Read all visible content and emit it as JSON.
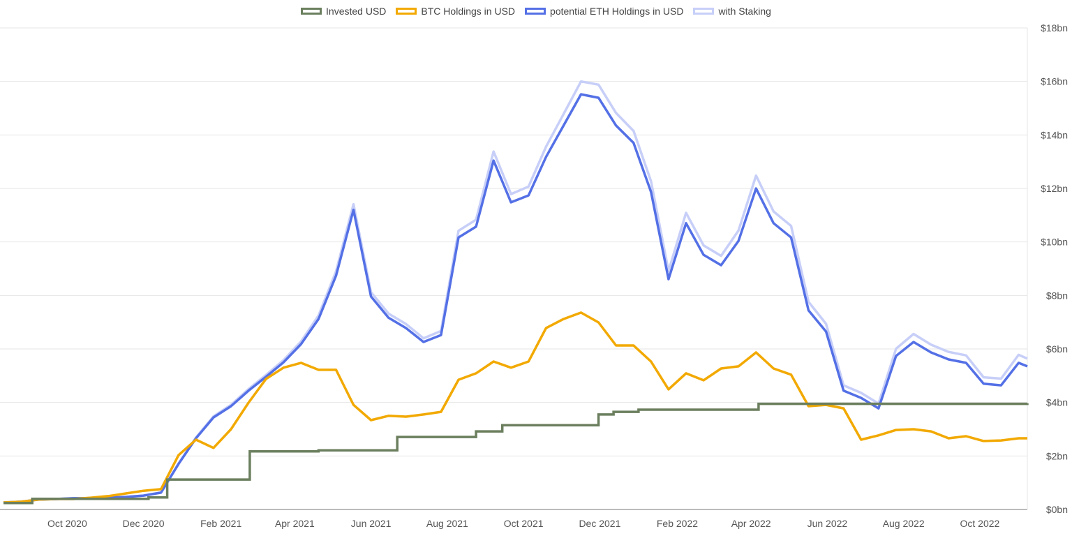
{
  "chart_data": {
    "type": "line",
    "title": "",
    "xlabel": "",
    "ylabel": "",
    "xlim": [
      "2020-08-11",
      "2022-11-08"
    ],
    "ylim": [
      0,
      18
    ],
    "y_unit": "bn USD",
    "y_axis_side": "right",
    "grid": true,
    "legend_position": "top",
    "x_tick_labels": [
      {
        "date": "2020-10-01",
        "label": "Oct 2020"
      },
      {
        "date": "2020-12-01",
        "label": "Dec 2020"
      },
      {
        "date": "2021-02-01",
        "label": "Feb 2021"
      },
      {
        "date": "2021-04-01",
        "label": "Apr 2021"
      },
      {
        "date": "2021-06-01",
        "label": "Jun 2021"
      },
      {
        "date": "2021-08-01",
        "label": "Aug 2021"
      },
      {
        "date": "2021-10-01",
        "label": "Oct 2021"
      },
      {
        "date": "2021-12-01",
        "label": "Dec 2021"
      },
      {
        "date": "2022-02-01",
        "label": "Feb 2022"
      },
      {
        "date": "2022-04-01",
        "label": "Apr 2022"
      },
      {
        "date": "2022-06-01",
        "label": "Jun 2022"
      },
      {
        "date": "2022-08-01",
        "label": "Aug 2022"
      },
      {
        "date": "2022-10-01",
        "label": "Oct 2022"
      }
    ],
    "y_tick_labels": [
      {
        "value": 0,
        "label": "$0bn"
      },
      {
        "value": 2,
        "label": "$2bn"
      },
      {
        "value": 4,
        "label": "$4bn"
      },
      {
        "value": 6,
        "label": "$6bn"
      },
      {
        "value": 8,
        "label": "$8bn"
      },
      {
        "value": 10,
        "label": "$10bn"
      },
      {
        "value": 12,
        "label": "$12bn"
      },
      {
        "value": 14,
        "label": "$14bn"
      },
      {
        "value": 16,
        "label": "$16bn"
      },
      {
        "value": 18,
        "label": "$18bn"
      }
    ],
    "x": [
      "2020-08-11",
      "2020-08-25",
      "2020-09-08",
      "2020-09-22",
      "2020-10-06",
      "2020-10-20",
      "2020-11-03",
      "2020-11-17",
      "2020-12-01",
      "2020-12-15",
      "2020-12-29",
      "2021-01-12",
      "2021-01-26",
      "2021-02-09",
      "2021-02-23",
      "2021-03-09",
      "2021-03-23",
      "2021-04-06",
      "2021-04-20",
      "2021-05-04",
      "2021-05-18",
      "2021-06-01",
      "2021-06-15",
      "2021-06-29",
      "2021-07-13",
      "2021-07-27",
      "2021-08-10",
      "2021-08-24",
      "2021-09-07",
      "2021-09-21",
      "2021-10-05",
      "2021-10-19",
      "2021-11-02",
      "2021-11-16",
      "2021-11-30",
      "2021-12-14",
      "2021-12-28",
      "2022-01-11",
      "2022-01-25",
      "2022-02-08",
      "2022-02-22",
      "2022-03-08",
      "2022-03-22",
      "2022-04-05",
      "2022-04-19",
      "2022-05-03",
      "2022-05-17",
      "2022-05-31",
      "2022-06-14",
      "2022-06-28",
      "2022-07-12",
      "2022-07-26",
      "2022-08-09",
      "2022-08-23",
      "2022-09-06",
      "2022-09-20",
      "2022-10-04",
      "2022-10-18",
      "2022-11-01",
      "2022-11-08"
    ],
    "series": [
      {
        "name": "with Staking",
        "color": "#c7cff8",
        "values": [
          0.26,
          0.29,
          0.37,
          0.39,
          0.42,
          0.42,
          0.44,
          0.47,
          0.52,
          0.64,
          1.72,
          2.69,
          3.48,
          3.91,
          4.5,
          5.03,
          5.58,
          6.28,
          7.25,
          8.9,
          11.41,
          8.12,
          7.32,
          6.93,
          6.4,
          6.67,
          10.42,
          10.83,
          13.38,
          11.79,
          12.07,
          13.56,
          14.78,
          16.0,
          15.88,
          14.82,
          14.15,
          12.27,
          8.91,
          11.09,
          9.87,
          9.48,
          10.43,
          12.48,
          11.14,
          10.6,
          7.76,
          6.94,
          4.64,
          4.36,
          3.96,
          6.01,
          6.56,
          6.16,
          5.89,
          5.76,
          4.94,
          4.89,
          5.78,
          5.64
        ]
      },
      {
        "name": "potential ETH Holdings in USD",
        "color": "#5470e6",
        "values": [
          0.26,
          0.29,
          0.37,
          0.39,
          0.42,
          0.42,
          0.44,
          0.47,
          0.52,
          0.63,
          1.7,
          2.66,
          3.44,
          3.86,
          4.44,
          4.96,
          5.5,
          6.18,
          7.12,
          8.74,
          11.2,
          7.96,
          7.17,
          6.78,
          6.26,
          6.52,
          10.17,
          10.57,
          13.04,
          11.48,
          11.74,
          13.18,
          14.35,
          15.52,
          15.39,
          14.35,
          13.7,
          11.87,
          8.61,
          10.7,
          9.52,
          9.13,
          10.04,
          12.0,
          10.7,
          10.17,
          7.44,
          6.65,
          4.44,
          4.17,
          3.78,
          5.74,
          6.26,
          5.87,
          5.61,
          5.48,
          4.7,
          4.64,
          5.48,
          5.35
        ]
      },
      {
        "name": "BTC Holdings in USD",
        "color": "#f2a900",
        "values": [
          0.26,
          0.29,
          0.37,
          0.39,
          0.39,
          0.44,
          0.5,
          0.6,
          0.7,
          0.76,
          2.03,
          2.61,
          2.3,
          3.0,
          3.99,
          4.88,
          5.3,
          5.48,
          5.22,
          5.22,
          3.91,
          3.34,
          3.5,
          3.47,
          3.55,
          3.65,
          4.85,
          5.09,
          5.53,
          5.3,
          5.53,
          6.78,
          7.12,
          7.36,
          6.99,
          6.13,
          6.13,
          5.53,
          4.49,
          5.09,
          4.83,
          5.27,
          5.35,
          5.87,
          5.27,
          5.04,
          3.86,
          3.91,
          3.78,
          2.61,
          2.77,
          2.97,
          3.0,
          2.92,
          2.66,
          2.74,
          2.56,
          2.58,
          2.66,
          2.66
        ]
      }
    ],
    "invested": {
      "name": "Invested USD",
      "color": "#6b7f5e",
      "steps": [
        {
          "date": "2020-08-11",
          "value": 0.24
        },
        {
          "date": "2020-09-03",
          "value": 0.4
        },
        {
          "date": "2020-12-05",
          "value": 0.45
        },
        {
          "date": "2020-12-20",
          "value": 1.12
        },
        {
          "date": "2021-02-24",
          "value": 2.17
        },
        {
          "date": "2021-04-20",
          "value": 2.21
        },
        {
          "date": "2021-06-22",
          "value": 2.71
        },
        {
          "date": "2021-08-24",
          "value": 2.92
        },
        {
          "date": "2021-09-14",
          "value": 3.15
        },
        {
          "date": "2021-11-30",
          "value": 3.55
        },
        {
          "date": "2021-12-12",
          "value": 3.65
        },
        {
          "date": "2022-01-01",
          "value": 3.73
        },
        {
          "date": "2022-04-07",
          "value": 3.95
        },
        {
          "date": "2022-11-08",
          "value": 3.97
        }
      ]
    }
  },
  "legend": [
    {
      "label": "Invested USD",
      "color": "#6b7f5e"
    },
    {
      "label": "BTC Holdings in USD",
      "color": "#f2a900"
    },
    {
      "label": "potential ETH Holdings in USD",
      "color": "#5470e6"
    },
    {
      "label": "with Staking",
      "color": "#c7cff8"
    }
  ]
}
